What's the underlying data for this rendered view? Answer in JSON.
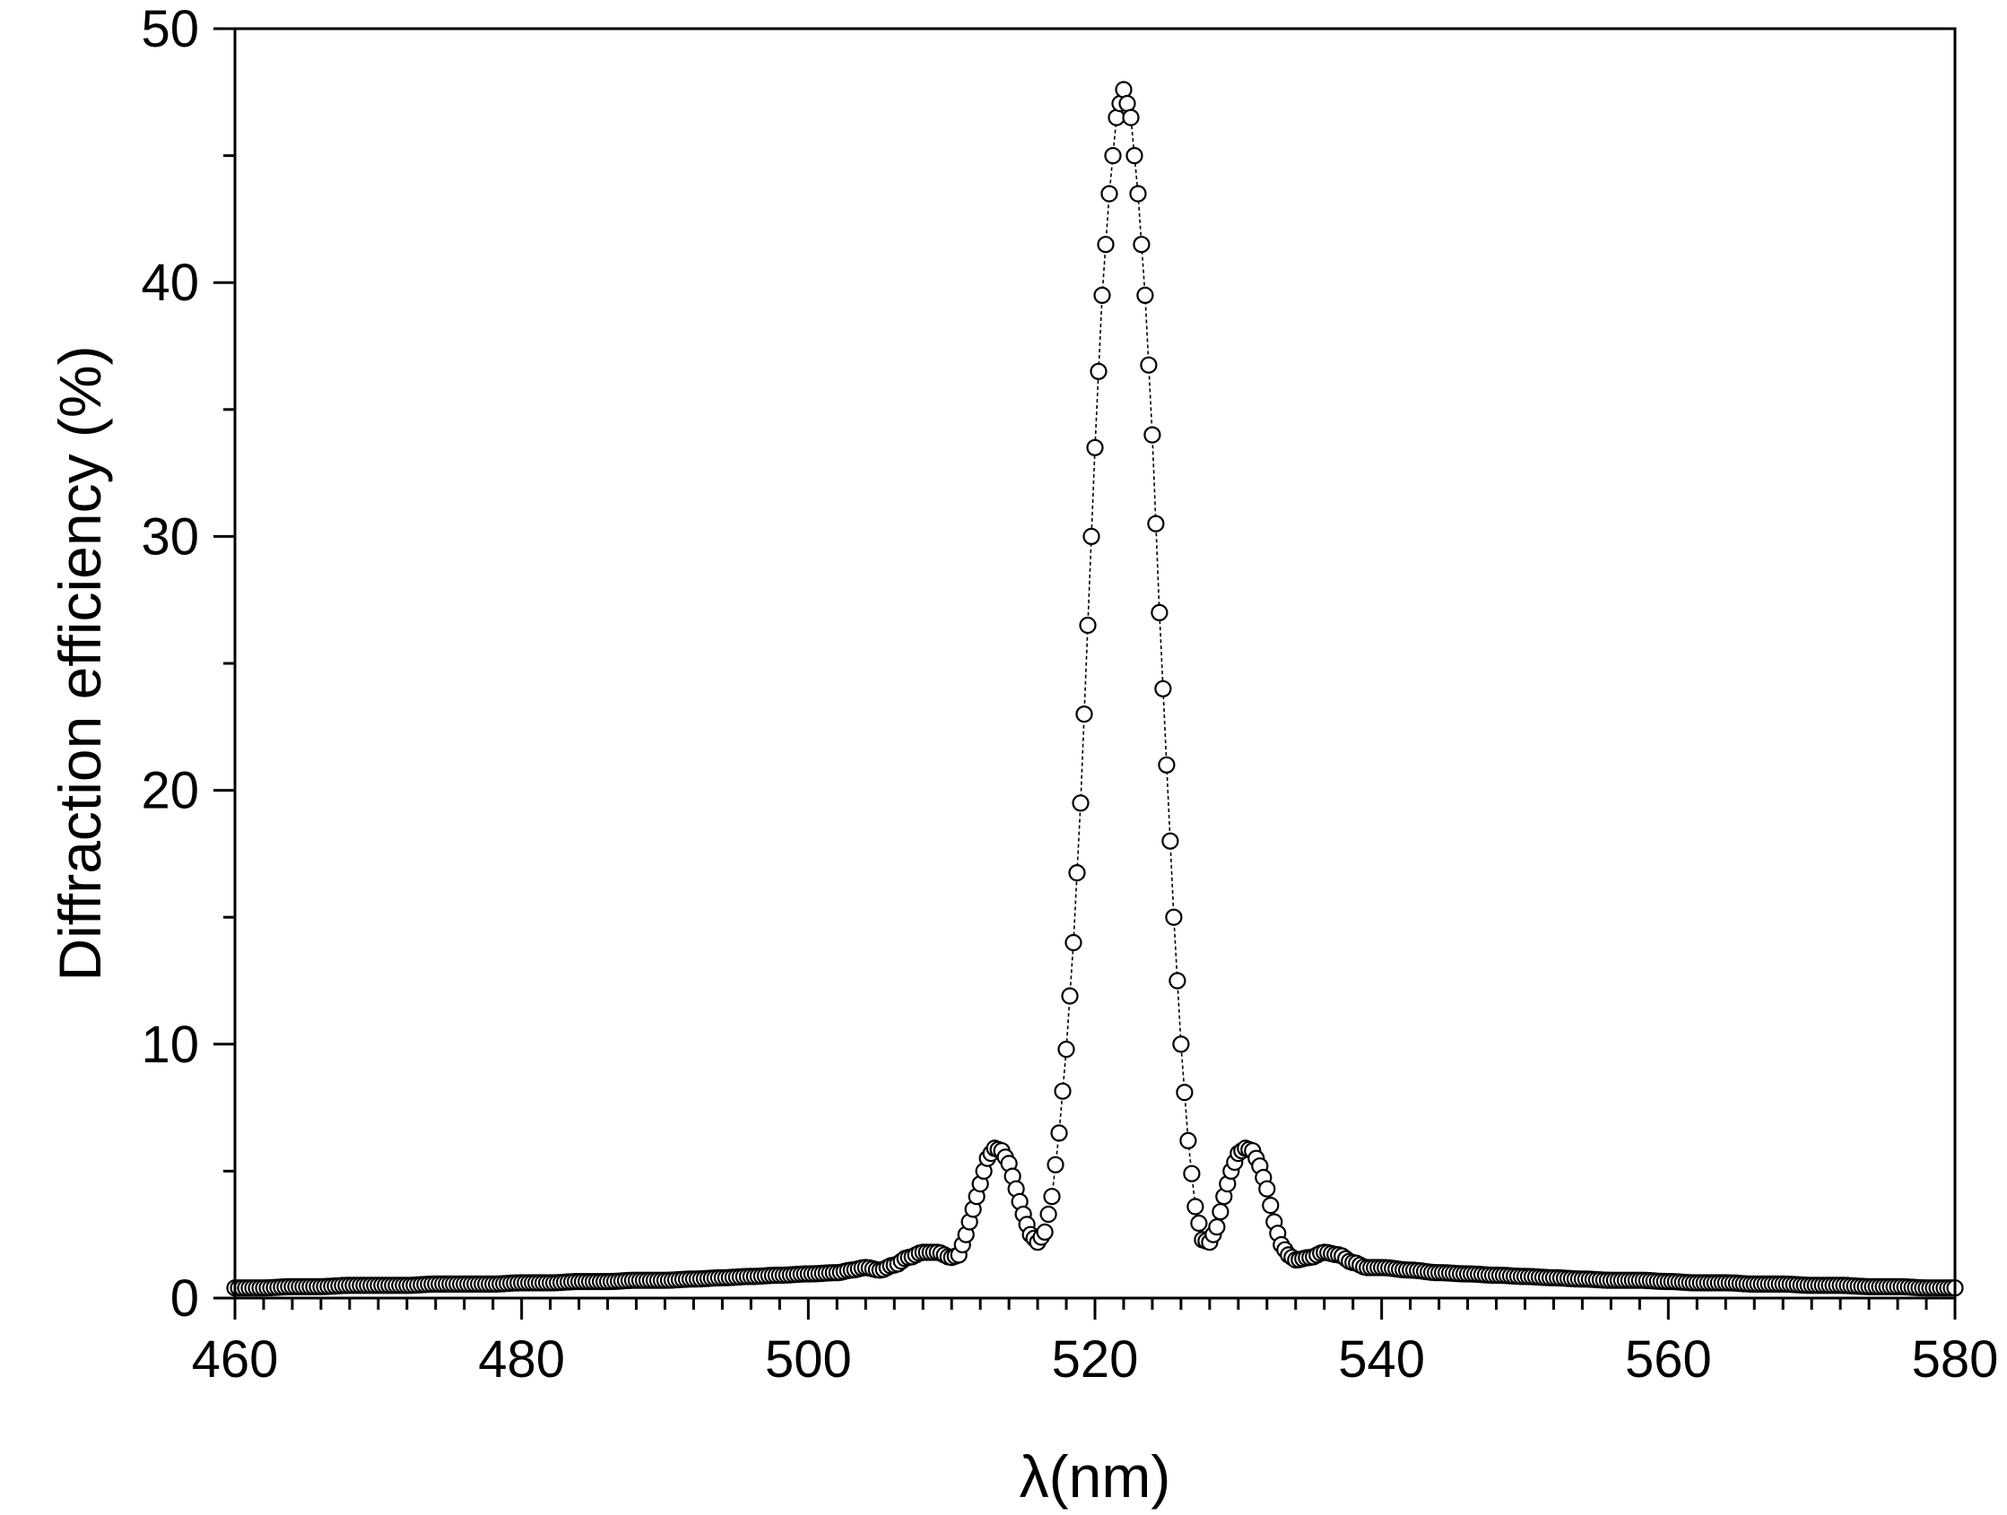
{
  "chart_data": {
    "type": "scatter",
    "title": "",
    "xlabel": "λ(nm)",
    "ylabel": "Diffraction efficiency (%)",
    "xlim": [
      460,
      580
    ],
    "ylim": [
      0,
      50
    ],
    "x_ticks": [
      460,
      480,
      500,
      520,
      540,
      560,
      580
    ],
    "y_ticks": [
      0,
      10,
      20,
      30,
      40,
      50
    ],
    "x_minor_step": 2,
    "y_minor_step": 5,
    "grid": false,
    "legend": "none",
    "marker": "open-circle",
    "connecting_line": true,
    "colors": {
      "marker_stroke": "#000000",
      "marker_fill": "#ffffff",
      "axis": "#000000"
    },
    "series": [
      {
        "x": [
          460,
          462,
          464,
          466,
          468,
          470,
          472,
          474,
          476,
          478,
          480,
          482,
          484,
          486,
          488,
          490,
          492,
          494,
          496,
          498,
          500,
          502,
          503,
          504,
          505,
          506,
          507,
          508,
          509,
          510,
          510.5,
          511,
          511.5,
          512,
          512.5,
          513,
          513.5,
          514,
          514.5,
          515,
          515.5,
          516,
          516.5,
          517,
          517.5,
          518,
          518.5,
          519,
          519.5,
          520,
          520.5,
          521,
          521.5,
          522,
          522.5,
          523,
          523.5,
          524,
          524.5,
          525,
          525.5,
          526,
          526.5,
          527,
          527.5,
          528,
          528.5,
          529,
          529.5,
          530,
          530.5,
          531,
          531.5,
          532,
          532.5,
          533,
          533.5,
          534,
          535,
          536,
          537,
          538,
          539,
          540,
          542,
          544,
          546,
          548,
          550,
          552,
          554,
          556,
          558,
          560,
          562,
          564,
          566,
          568,
          570,
          572,
          574,
          576,
          578,
          580
        ],
        "y": [
          0.4,
          0.4,
          0.45,
          0.45,
          0.5,
          0.5,
          0.5,
          0.55,
          0.55,
          0.55,
          0.6,
          0.6,
          0.65,
          0.65,
          0.7,
          0.7,
          0.75,
          0.8,
          0.85,
          0.9,
          0.95,
          1.0,
          1.1,
          1.2,
          1.1,
          1.3,
          1.6,
          1.8,
          1.8,
          1.6,
          1.7,
          2.5,
          3.5,
          4.5,
          5.5,
          5.9,
          5.8,
          5.3,
          4.3,
          3.3,
          2.5,
          2.2,
          2.6,
          4.0,
          6.5,
          9.8,
          14.0,
          19.5,
          26.5,
          33.5,
          39.5,
          43.5,
          46.5,
          47.6,
          46.5,
          43.5,
          39.5,
          34.0,
          27.0,
          21.0,
          15.0,
          10.0,
          6.2,
          3.6,
          2.3,
          2.2,
          2.8,
          4.0,
          5.0,
          5.7,
          5.9,
          5.8,
          5.2,
          4.3,
          3.0,
          2.1,
          1.7,
          1.5,
          1.6,
          1.8,
          1.7,
          1.4,
          1.2,
          1.2,
          1.1,
          1.0,
          0.95,
          0.9,
          0.85,
          0.8,
          0.75,
          0.7,
          0.7,
          0.65,
          0.6,
          0.6,
          0.55,
          0.55,
          0.5,
          0.5,
          0.45,
          0.45,
          0.4,
          0.4
        ]
      }
    ]
  }
}
